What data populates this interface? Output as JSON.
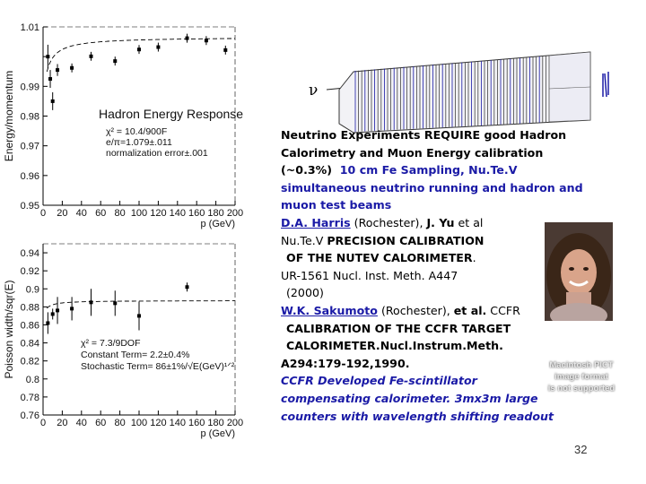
{
  "chart_data": [
    {
      "type": "scatter",
      "title": "Hadron Energy Response",
      "annotations": [
        "χ² = 10.4/900F",
        "e/π=1.079±.011",
        "normalization error±.001"
      ],
      "xlabel": "p (GeV)",
      "ylabel": "Energy/momentum",
      "xlim": [
        0,
        200
      ],
      "ylim": [
        0.95,
        1.01
      ],
      "xticks": [
        0,
        20,
        40,
        60,
        80,
        100,
        120,
        140,
        160,
        180,
        200
      ],
      "xtick_labels": [
        "0",
        "20",
        "40",
        "60",
        "80",
        "100",
        "120",
        "140",
        "160",
        "180",
        "200"
      ],
      "yticks": [
        0.95,
        0.96,
        0.97,
        0.98,
        0.99,
        1.0,
        1.01
      ],
      "ytick_labels": [
        "0.95",
        "0.96",
        "0.97",
        "0.98",
        "0.99",
        "",
        "1.01"
      ],
      "series": [
        {
          "x": [
            5,
            7.5,
            10,
            15,
            30,
            50,
            75,
            100,
            120,
            150,
            170,
            190
          ],
          "y": [
            1.0,
            0.9925,
            0.985,
            0.9955,
            0.9962,
            1.0001,
            0.9985,
            1.0024,
            1.0032,
            1.0062,
            1.0054,
            1.0022
          ],
          "err": [
            0.004,
            0.003,
            0.003,
            0.002,
            0.0015,
            0.0015,
            0.0015,
            0.0015,
            0.0015,
            0.0015,
            0.0015,
            0.0015
          ]
        }
      ],
      "fit_curve": true
    },
    {
      "type": "scatter",
      "annotations": [
        "χ² = 7.3/9DOF",
        "Constant Term= 2.2±0.4%",
        "Stochastic Term= 86±1%/√E(GeV)¹ᐟ²"
      ],
      "xlabel": "p (GeV)",
      "ylabel": "Poisson width/sqr(E)",
      "xlim": [
        0,
        200
      ],
      "ylim": [
        0.76,
        0.95
      ],
      "xticks": [
        0,
        20,
        40,
        60,
        80,
        100,
        120,
        140,
        160,
        180,
        200
      ],
      "xtick_labels": [
        "0",
        "20",
        "40",
        "60",
        "80",
        "100",
        "120",
        "140",
        "160",
        "180",
        "200"
      ],
      "yticks": [
        0.76,
        0.78,
        0.8,
        0.82,
        0.84,
        0.86,
        0.88,
        0.9,
        0.92,
        0.94
      ],
      "ytick_labels": [
        "0.76",
        "0.78",
        "0.8",
        "0.82",
        "0.84",
        "0.86",
        "0.88",
        "0.9",
        "0.92",
        "0.94"
      ],
      "series": [
        {
          "x": [
            5,
            10,
            15,
            30,
            50,
            75,
            100,
            150
          ],
          "y": [
            0.862,
            0.872,
            0.876,
            0.878,
            0.885,
            0.884,
            0.87,
            0.902
          ],
          "err": [
            0.012,
            0.006,
            0.015,
            0.013,
            0.015,
            0.014,
            0.016,
            0.005
          ]
        }
      ],
      "fit_curve": true
    }
  ],
  "detector": {
    "nu_label": "ν"
  },
  "text": {
    "line1": "Neutrino Experiments REQUIRE good Hadron",
    "line2": "Calorimetry and Muon Energy calibration",
    "line3a": "(~0.3%)",
    "line3b": "10 cm Fe Sampling, Nu.Te.V",
    "line4": "simultaneous neutrino running and hadron and",
    "line5": "muon test beams",
    "ref1_author": "D.A. Harris",
    "ref1_rest": " (Rochester), ",
    "ref1_jyu": "J. Yu",
    "ref1_etal": " et al",
    "ref1_title1a": "Nu.Te.V ",
    "ref1_title1b": "PRECISION CALIBRATION",
    "ref1_title2": "OF THE NUTEV CALORIMETER",
    "ref1_title2_dot": ".",
    "ref1_cite": "UR-1561 Nucl. Inst. Meth. A447",
    "ref1_year": "(2000)",
    "ref2_author": "W.K. Sakumoto",
    "ref2_rest": " (Rochester), ",
    "ref2_etal": "et al.",
    "ref2_ccfr": " CCFR",
    "ref2_title1": "CALIBRATION OF THE CCFR TARGET",
    "ref2_title2": "CALORIMETER.",
    "ref2_journal": "Nucl.Instrum.Meth.",
    "ref2_pages": "A294:179-192,1990.",
    "last1": "CCFR Developed Fe-scintillator",
    "last2": "compensating calorimeter.  3mx3m large",
    "last3": "counters with wavelength shifting readout"
  },
  "pict_placeholder": {
    "line1": "Macintosh PICT",
    "line2": "image format",
    "line3": "is not supported"
  },
  "slide_number": "32"
}
